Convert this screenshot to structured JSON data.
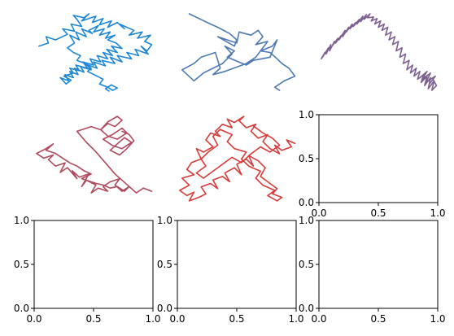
{
  "chart_data": [
    {
      "type": "line",
      "panel": "row1-col1",
      "axes_visible": false,
      "title": "",
      "series": [
        {
          "color": "#1f88d6",
          "x": [
            0.04,
            0.12,
            0.1,
            0.18,
            0.28,
            0.24,
            0.34,
            0.31,
            0.4,
            0.36,
            0.33,
            0.42,
            0.46,
            0.4,
            0.52,
            0.49,
            0.58,
            0.55,
            0.65,
            0.62,
            0.7,
            0.76,
            0.72,
            0.84,
            0.8,
            0.91,
            0.87,
            0.98,
            0.93,
            0.99,
            0.95,
            0.9,
            0.96,
            0.85,
            0.88,
            0.78,
            0.82,
            0.7,
            0.74,
            0.64,
            0.68,
            0.57,
            0.6,
            0.5,
            0.53,
            0.44,
            0.48,
            0.39,
            0.42,
            0.34,
            0.37,
            0.3,
            0.33,
            0.26,
            0.29,
            0.22,
            0.27,
            0.31,
            0.25,
            0.33,
            0.3,
            0.38,
            0.35,
            0.45,
            0.41,
            0.5,
            0.47,
            0.56,
            0.53,
            0.62,
            0.58,
            0.66,
            0.61,
            0.7,
            0.65,
            0.74,
            0.69,
            0.62,
            0.68,
            0.6,
            0.64,
            0.55,
            0.59,
            0.5,
            0.54,
            0.46,
            0.49,
            0.4,
            0.44,
            0.35,
            0.38,
            0.3,
            0.34,
            0.28,
            0.33,
            0.39,
            0.36,
            0.43,
            0.48,
            0.45,
            0.53,
            0.58,
            0.55,
            0.62,
            0.66,
            0.7,
            0.65,
            0.6,
            0.63
          ],
          "y": [
            0.58,
            0.62,
            0.7,
            0.66,
            0.73,
            0.8,
            0.77,
            0.86,
            0.83,
            0.92,
            0.97,
            0.94,
            0.99,
            0.9,
            0.96,
            0.88,
            0.93,
            0.85,
            0.9,
            0.82,
            0.88,
            0.8,
            0.86,
            0.78,
            0.72,
            0.76,
            0.68,
            0.72,
            0.64,
            0.6,
            0.52,
            0.58,
            0.48,
            0.54,
            0.46,
            0.5,
            0.42,
            0.46,
            0.38,
            0.44,
            0.36,
            0.4,
            0.33,
            0.38,
            0.3,
            0.35,
            0.28,
            0.32,
            0.25,
            0.3,
            0.22,
            0.26,
            0.18,
            0.22,
            0.14,
            0.18,
            0.1,
            0.15,
            0.2,
            0.24,
            0.3,
            0.27,
            0.34,
            0.3,
            0.38,
            0.34,
            0.42,
            0.38,
            0.46,
            0.42,
            0.5,
            0.46,
            0.54,
            0.5,
            0.58,
            0.55,
            0.62,
            0.66,
            0.72,
            0.68,
            0.76,
            0.72,
            0.8,
            0.76,
            0.84,
            0.78,
            0.74,
            0.8,
            0.7,
            0.76,
            0.66,
            0.72,
            0.62,
            0.56,
            0.5,
            0.46,
            0.4,
            0.36,
            0.3,
            0.26,
            0.2,
            0.16,
            0.1,
            0.06,
            0.02,
            0.05,
            0.09,
            0.04,
            0.01
          ]
        }
      ]
    },
    {
      "type": "line",
      "panel": "row1-col2",
      "axes_visible": false,
      "title": "",
      "series": [
        {
          "color": "#4f7ab5",
          "x": [
            0.1,
            0.28,
            0.34,
            0.44,
            0.5,
            0.48,
            0.34,
            0.5,
            0.52,
            0.62,
            0.68,
            0.72,
            0.66,
            0.76,
            0.7,
            0.8,
            0.84,
            0.78,
            0.64,
            0.58,
            0.42,
            0.48,
            0.4,
            0.46,
            0.38,
            0.3,
            0.22,
            0.14,
            0.04,
            0.14,
            0.2,
            0.32,
            0.36,
            0.3,
            0.4,
            0.58,
            0.66,
            0.7,
            0.78,
            0.84,
            0.88,
            0.94,
            0.99,
            0.9,
            0.82,
            0.86
          ],
          "y": [
            0.99,
            0.86,
            0.82,
            0.74,
            0.66,
            0.58,
            0.7,
            0.62,
            0.76,
            0.72,
            0.78,
            0.7,
            0.6,
            0.64,
            0.52,
            0.58,
            0.66,
            0.44,
            0.4,
            0.34,
            0.44,
            0.52,
            0.58,
            0.48,
            0.36,
            0.3,
            0.24,
            0.14,
            0.28,
            0.36,
            0.44,
            0.5,
            0.3,
            0.22,
            0.26,
            0.36,
            0.44,
            0.52,
            0.5,
            0.42,
            0.36,
            0.3,
            0.2,
            0.14,
            0.06,
            0.02
          ]
        }
      ]
    },
    {
      "type": "line",
      "panel": "row1-col3",
      "axes_visible": false,
      "title": "",
      "series": [
        {
          "color": "#7e6192",
          "x": [
            0.02,
            0.05,
            0.03,
            0.08,
            0.06,
            0.1,
            0.09,
            0.13,
            0.11,
            0.16,
            0.14,
            0.19,
            0.17,
            0.22,
            0.2,
            0.25,
            0.23,
            0.28,
            0.26,
            0.31,
            0.29,
            0.34,
            0.32,
            0.37,
            0.35,
            0.4,
            0.38,
            0.43,
            0.41,
            0.46,
            0.44,
            0.49,
            0.47,
            0.52,
            0.5,
            0.55,
            0.53,
            0.58,
            0.56,
            0.61,
            0.59,
            0.64,
            0.62,
            0.67,
            0.65,
            0.7,
            0.68,
            0.73,
            0.71,
            0.76,
            0.74,
            0.79,
            0.77,
            0.82,
            0.8,
            0.85,
            0.83,
            0.88,
            0.86,
            0.91,
            0.89,
            0.94,
            0.92,
            0.97,
            0.95,
            0.99,
            0.96,
            0.93,
            0.98,
            0.9,
            0.94,
            0.87,
            0.91,
            0.85
          ],
          "y": [
            0.42,
            0.5,
            0.44,
            0.56,
            0.48,
            0.6,
            0.52,
            0.64,
            0.58,
            0.68,
            0.62,
            0.72,
            0.66,
            0.78,
            0.7,
            0.82,
            0.76,
            0.86,
            0.8,
            0.88,
            0.83,
            0.92,
            0.86,
            0.96,
            0.89,
            0.98,
            0.92,
            0.99,
            0.94,
            0.95,
            0.9,
            0.93,
            0.86,
            0.9,
            0.82,
            0.86,
            0.78,
            0.82,
            0.72,
            0.76,
            0.66,
            0.7,
            0.6,
            0.64,
            0.52,
            0.56,
            0.44,
            0.48,
            0.36,
            0.4,
            0.28,
            0.34,
            0.24,
            0.3,
            0.2,
            0.26,
            0.16,
            0.22,
            0.12,
            0.2,
            0.08,
            0.18,
            0.04,
            0.14,
            0.02,
            0.08,
            0.16,
            0.1,
            0.2,
            0.12,
            0.24,
            0.16,
            0.26,
            0.18
          ]
        }
      ]
    },
    {
      "type": "line",
      "panel": "row2-col1",
      "axes_visible": false,
      "title": "",
      "series": [
        {
          "color": "#b04a5e",
          "x": [
            0.99,
            0.92,
            0.86,
            0.8,
            0.74,
            0.68,
            0.72,
            0.64,
            0.58,
            0.62,
            0.54,
            0.48,
            0.52,
            0.44,
            0.4,
            0.46,
            0.38,
            0.32,
            0.36,
            0.28,
            0.22,
            0.26,
            0.18,
            0.12,
            0.16,
            0.08,
            0.02,
            0.1,
            0.16,
            0.1,
            0.18,
            0.24,
            0.3,
            0.36,
            0.42,
            0.48,
            0.4,
            0.52,
            0.58,
            0.64,
            0.7,
            0.76,
            0.8,
            0.68,
            0.6,
            0.52,
            0.44,
            0.36,
            0.48,
            0.56,
            0.62,
            0.68,
            0.74,
            0.7,
            0.62,
            0.56,
            0.62,
            0.7,
            0.78,
            0.74,
            0.66,
            0.58,
            0.66,
            0.74,
            0.82,
            0.76,
            0.7,
            0.64,
            0.72,
            0.78,
            0.84,
            0.8,
            0.74
          ],
          "y": [
            0.04,
            0.08,
            0.02,
            0.1,
            0.04,
            0.12,
            0.2,
            0.16,
            0.1,
            0.04,
            0.08,
            0.02,
            0.12,
            0.18,
            0.1,
            0.26,
            0.22,
            0.3,
            0.2,
            0.34,
            0.28,
            0.4,
            0.36,
            0.44,
            0.5,
            0.46,
            0.52,
            0.58,
            0.64,
            0.56,
            0.52,
            0.46,
            0.4,
            0.36,
            0.3,
            0.26,
            0.2,
            0.14,
            0.12,
            0.08,
            0.1,
            0.04,
            0.1,
            0.26,
            0.4,
            0.54,
            0.66,
            0.8,
            0.86,
            0.82,
            0.9,
            0.86,
            0.94,
            0.99,
            0.92,
            0.82,
            0.74,
            0.7,
            0.78,
            0.84,
            0.76,
            0.7,
            0.62,
            0.58,
            0.66,
            0.72,
            0.64,
            0.56,
            0.5,
            0.58,
            0.68,
            0.76,
            0.8
          ]
        }
      ]
    },
    {
      "type": "line",
      "panel": "row2-col2",
      "axes_visible": false,
      "title": "",
      "series": [
        {
          "color": "#d63c3a",
          "x": [
            0.99,
            0.92,
            0.96,
            0.88,
            0.82,
            0.86,
            0.78,
            0.72,
            0.76,
            0.68,
            0.62,
            0.66,
            0.58,
            0.52,
            0.56,
            0.48,
            0.42,
            0.46,
            0.38,
            0.32,
            0.36,
            0.28,
            0.24,
            0.3,
            0.22,
            0.16,
            0.2,
            0.12,
            0.08,
            0.14,
            0.04,
            0.1,
            0.02,
            0.08,
            0.14,
            0.1,
            0.18,
            0.24,
            0.2,
            0.28,
            0.34,
            0.3,
            0.38,
            0.44,
            0.4,
            0.48,
            0.54,
            0.5,
            0.58,
            0.64,
            0.6,
            0.68,
            0.74,
            0.7,
            0.78,
            0.84,
            0.8,
            0.88,
            0.84,
            0.76,
            0.82,
            0.72,
            0.66,
            0.7,
            0.6,
            0.54,
            0.58,
            0.48,
            0.42,
            0.46,
            0.36,
            0.3,
            0.34,
            0.26,
            0.2,
            0.24,
            0.16,
            0.22,
            0.3,
            0.38,
            0.46,
            0.54,
            0.62,
            0.7,
            0.78,
            0.86,
            0.8,
            0.72,
            0.64
          ],
          "y": [
            0.68,
            0.72,
            0.64,
            0.6,
            0.66,
            0.56,
            0.62,
            0.7,
            0.78,
            0.74,
            0.82,
            0.9,
            0.86,
            0.94,
            0.99,
            0.92,
            0.96,
            0.86,
            0.9,
            0.82,
            0.76,
            0.8,
            0.72,
            0.64,
            0.58,
            0.62,
            0.5,
            0.46,
            0.38,
            0.32,
            0.28,
            0.2,
            0.14,
            0.08,
            0.12,
            0.02,
            0.06,
            0.1,
            0.18,
            0.22,
            0.16,
            0.26,
            0.3,
            0.24,
            0.34,
            0.4,
            0.32,
            0.44,
            0.5,
            0.42,
            0.54,
            0.48,
            0.4,
            0.3,
            0.22,
            0.16,
            0.1,
            0.06,
            0.02,
            0.08,
            0.14,
            0.2,
            0.28,
            0.36,
            0.42,
            0.5,
            0.58,
            0.62,
            0.7,
            0.78,
            0.84,
            0.76,
            0.66,
            0.58,
            0.5,
            0.42,
            0.34,
            0.28,
            0.36,
            0.44,
            0.52,
            0.46,
            0.56,
            0.64,
            0.58,
            0.66,
            0.74,
            0.8,
            0.88
          ]
        }
      ]
    },
    {
      "type": "line",
      "panel": "row2-col3",
      "axes_visible": true,
      "empty": true,
      "xlim": [
        0,
        1
      ],
      "ylim": [
        0,
        1
      ],
      "xticks": [
        "0.0",
        "0.5",
        "1.0"
      ],
      "yticks": [
        "0.0",
        "0.5",
        "1.0"
      ]
    },
    {
      "type": "line",
      "panel": "row3-col1",
      "axes_visible": true,
      "empty": true,
      "xlim": [
        0,
        1
      ],
      "ylim": [
        0,
        1
      ],
      "xticks": [
        "0.0",
        "0.5",
        "1.0"
      ],
      "yticks": [
        "0.0",
        "0.5",
        "1.0"
      ]
    },
    {
      "type": "line",
      "panel": "row3-col2",
      "axes_visible": true,
      "empty": true,
      "xlim": [
        0,
        1
      ],
      "ylim": [
        0,
        1
      ],
      "xticks": [
        "0.0",
        "0.5",
        "1.0"
      ],
      "yticks": [
        "0.0",
        "0.5",
        "1.0"
      ]
    },
    {
      "type": "line",
      "panel": "row3-col3",
      "axes_visible": true,
      "empty": true,
      "xlim": [
        0,
        1
      ],
      "ylim": [
        0,
        1
      ],
      "xticks": [
        "0.0",
        "0.5",
        "1.0"
      ],
      "yticks": [
        "0.0",
        "0.5",
        "1.0"
      ]
    }
  ]
}
